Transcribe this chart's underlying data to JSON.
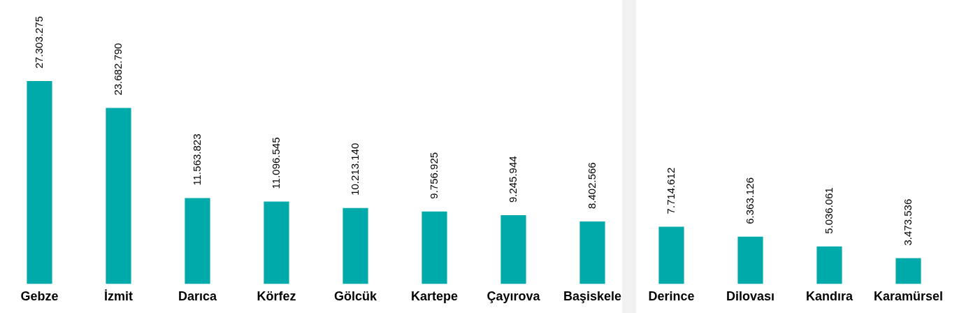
{
  "chart_data": {
    "type": "bar",
    "categories": [
      "Gebze",
      "İzmit",
      "Darıca",
      "Körfez",
      "Gölcük",
      "Kartepe",
      "Çayırova",
      "Başiskele",
      "Derince",
      "Dilovası",
      "Kandıra",
      "Karamürsel"
    ],
    "values": [
      27303275,
      23682790,
      11563823,
      11096545,
      10213140,
      9756925,
      9245944,
      8402566,
      7714612,
      6363126,
      5036061,
      3473536
    ],
    "value_labels": [
      "27.303.275",
      "23.682.790",
      "11.563.823",
      "11.096.545",
      "10.213.140",
      "9.756.925",
      "9.245.944",
      "8.402.566",
      "7.714.612",
      "6.363.126",
      "5.036.061",
      "3.473.536"
    ],
    "color": "#00aaaa",
    "grid": false,
    "legend": false
  }
}
